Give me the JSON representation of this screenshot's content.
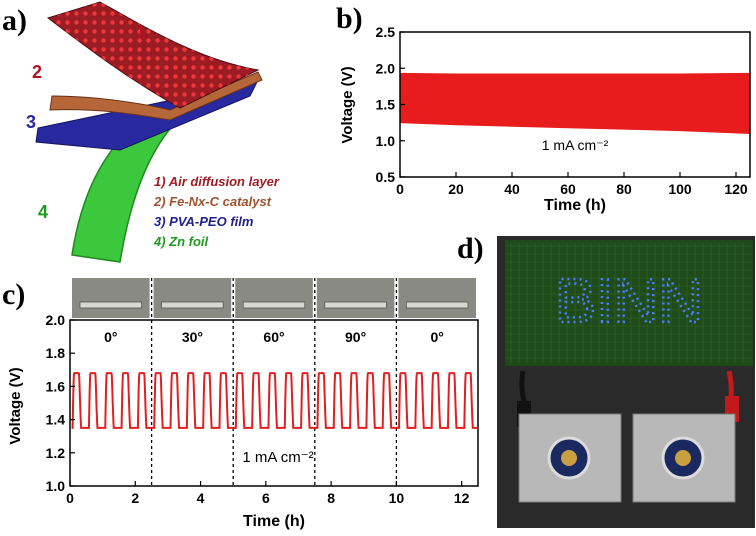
{
  "panel_labels": {
    "a": "a)",
    "b": "b)",
    "c": "c)",
    "d": "d)"
  },
  "schematic": {
    "layer_numbers": [
      "1",
      "2",
      "3",
      "4"
    ],
    "legend": [
      "1) Air diffusion layer",
      "2) Fe-Nx-C catalyst",
      "3) PVA-PEO film",
      "4) Zn foil"
    ],
    "colors": {
      "air_layer": "#9c1c24",
      "catalyst": "#b5673a",
      "film": "#2828a0",
      "zn_foil": "#3cc83c"
    }
  },
  "photo": {
    "sign_text": "BINN",
    "colors": {
      "board": "#1f4a1a",
      "led": "#3a6bff",
      "background": "#2a2a2a",
      "clip": "#c21a1a"
    }
  },
  "chart_data": [
    {
      "id": "b",
      "type": "area",
      "xlabel": "Time (h)",
      "ylabel": "Voltage (V)",
      "xlim": [
        0,
        125
      ],
      "ylim": [
        0.5,
        2.5
      ],
      "xticks": [
        0,
        20,
        40,
        60,
        80,
        100,
        120
      ],
      "yticks": [
        0.5,
        1.0,
        1.5,
        2.0,
        2.5
      ],
      "annotation": "1 mA cm⁻²",
      "color": "#e81c1c",
      "series": [
        {
          "role": "charge_upper",
          "x": [
            0,
            20,
            40,
            60,
            80,
            100,
            125
          ],
          "values": [
            1.93,
            1.92,
            1.92,
            1.92,
            1.92,
            1.92,
            1.93
          ]
        },
        {
          "role": "discharge_lower",
          "x": [
            0,
            20,
            40,
            60,
            80,
            100,
            125
          ],
          "values": [
            1.25,
            1.22,
            1.2,
            1.18,
            1.16,
            1.14,
            1.1
          ]
        }
      ]
    },
    {
      "id": "c",
      "type": "line",
      "xlabel": "Time (h)",
      "ylabel": "Voltage (V)",
      "xlim": [
        0,
        12.5
      ],
      "ylim": [
        1.0,
        2.0
      ],
      "xticks": [
        0,
        2,
        4,
        6,
        8,
        10,
        12
      ],
      "yticks": [
        1.0,
        1.2,
        1.4,
        1.6,
        1.8,
        2.0
      ],
      "annotation": "1 mA cm⁻²",
      "color": "#e02020",
      "bend_angles": [
        "0°",
        "30°",
        "60°",
        "90°",
        "0°"
      ],
      "segment_boundaries": [
        2.5,
        5.0,
        7.5,
        10.0
      ],
      "cycle_period_h": 0.5,
      "series": [
        {
          "role": "charge",
          "value": 1.68
        },
        {
          "role": "discharge",
          "value": 1.35
        }
      ]
    }
  ]
}
